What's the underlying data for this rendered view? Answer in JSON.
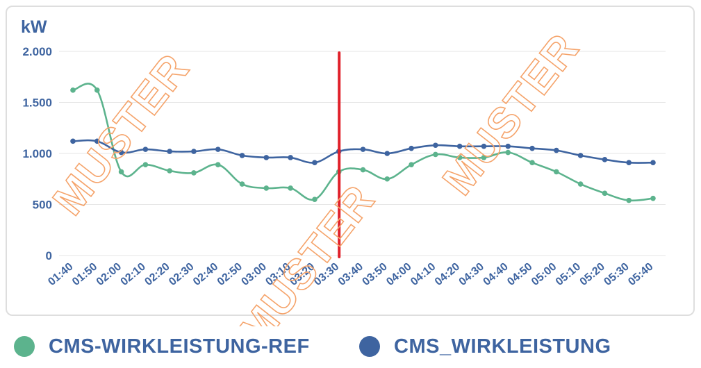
{
  "chart_data": {
    "type": "line",
    "ylabel": "kW",
    "ylim": [
      0,
      2000
    ],
    "yticks": [
      {
        "value": 0,
        "label": "0"
      },
      {
        "value": 500,
        "label": "500"
      },
      {
        "value": 1000,
        "label": "1.000"
      },
      {
        "value": 1500,
        "label": "1.500"
      },
      {
        "value": 2000,
        "label": "2.000"
      }
    ],
    "categories": [
      "01:40",
      "01:50",
      "02:00",
      "02:10",
      "02:20",
      "02:30",
      "02:40",
      "02:50",
      "03:00",
      "03:10",
      "03:20",
      "03:30",
      "03:40",
      "03:50",
      "04:00",
      "04:10",
      "04:20",
      "04:30",
      "04:40",
      "04:50",
      "05:00",
      "05:10",
      "05:20",
      "05:30",
      "05:40"
    ],
    "series": [
      {
        "name": "CMS-WIRKLEISTUNG-REF",
        "color": "#5cb38d",
        "values": [
          1620,
          1620,
          820,
          890,
          830,
          810,
          890,
          700,
          660,
          660,
          550,
          820,
          840,
          750,
          890,
          990,
          960,
          960,
          1010,
          910,
          820,
          700,
          610,
          540,
          560
        ]
      },
      {
        "name": "CMS_WIRKLEISTUNG",
        "color": "#3e64a0",
        "values": [
          1120,
          1120,
          1010,
          1040,
          1020,
          1020,
          1040,
          980,
          960,
          960,
          910,
          1020,
          1040,
          1000,
          1050,
          1080,
          1070,
          1070,
          1070,
          1050,
          1030,
          980,
          940,
          910,
          910
        ]
      }
    ],
    "marker": {
      "category": "03:30",
      "color": "#e0202a"
    },
    "watermark": {
      "text": "MUSTER",
      "color": "#f5a36a"
    },
    "grid": true,
    "legend_position": "bottom-left"
  }
}
